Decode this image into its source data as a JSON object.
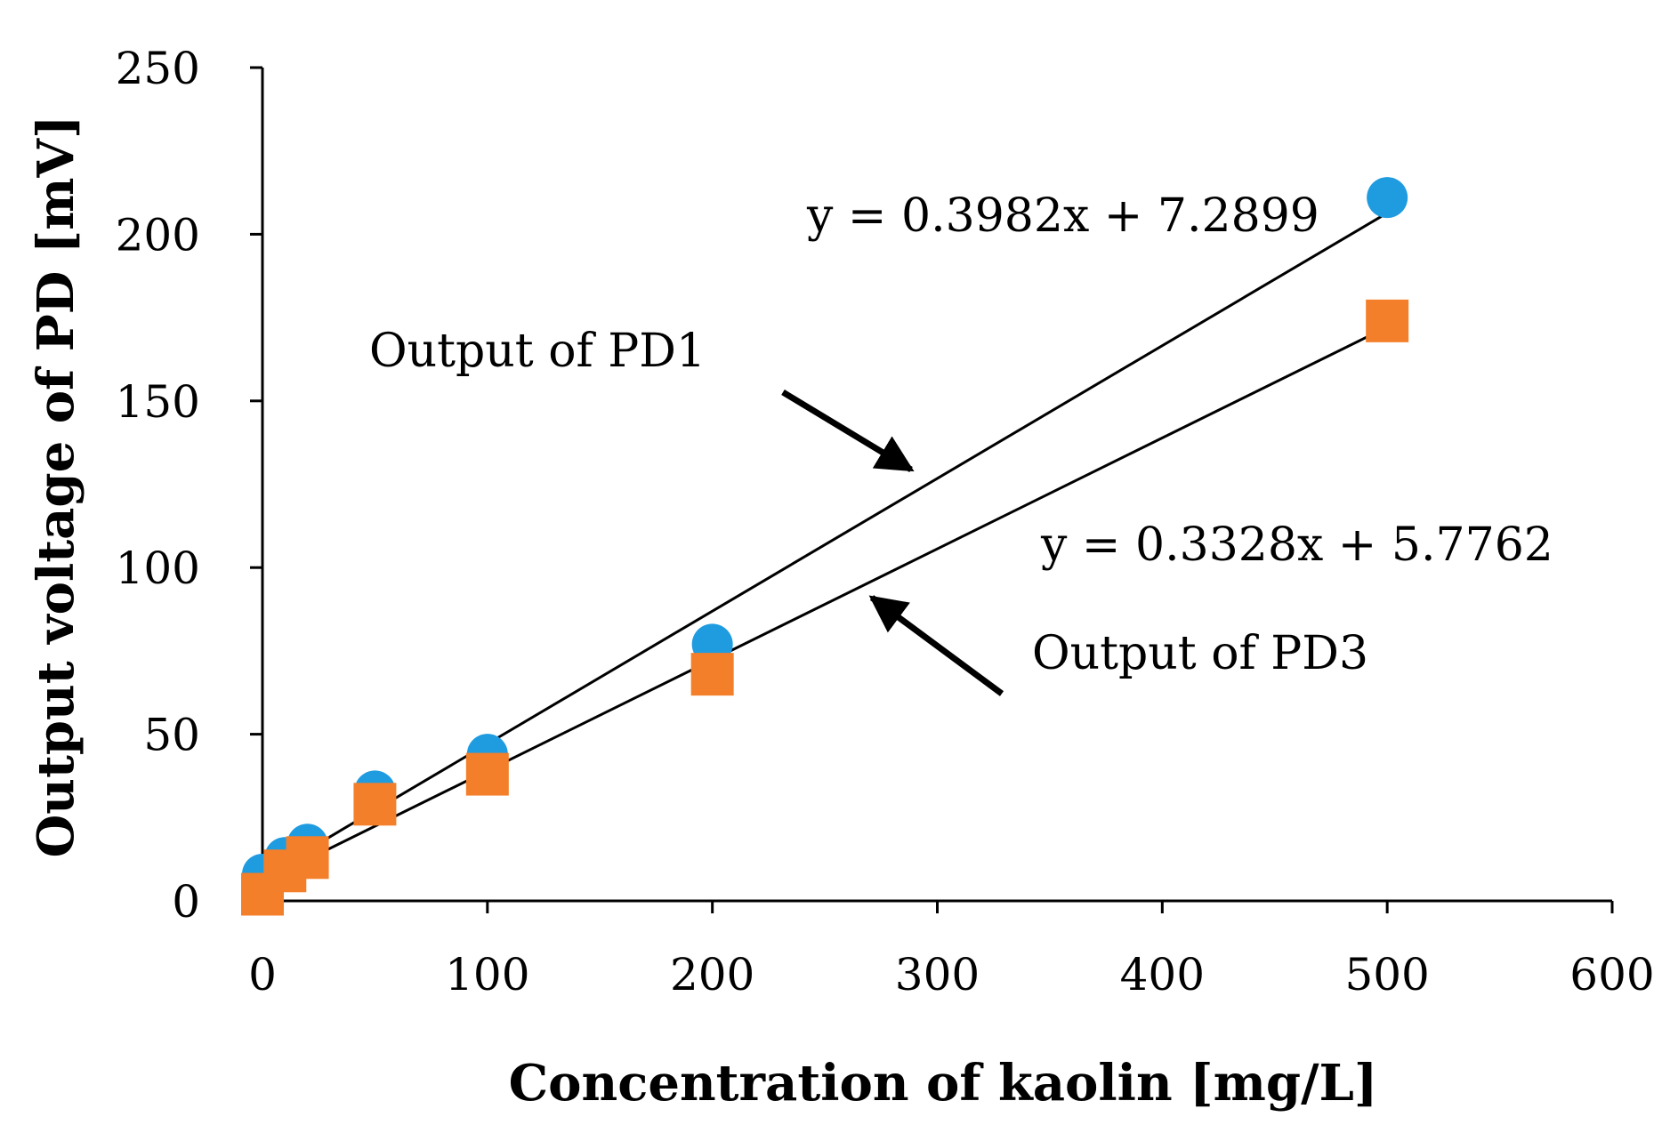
{
  "chart_data": {
    "type": "scatter",
    "xlabel": "Concentration of kaolin [mg/L]",
    "ylabel": "Output voltage of PD [mV]",
    "xlim": [
      0,
      600
    ],
    "ylim": [
      0,
      250
    ],
    "xticks": [
      0,
      100,
      200,
      300,
      400,
      500,
      600
    ],
    "yticks": [
      0,
      50,
      100,
      150,
      200,
      250
    ],
    "grid": false,
    "legend": "none",
    "series": [
      {
        "marker": "circle",
        "color": "#1f9be0",
        "points": [
          [
            0,
            8
          ],
          [
            10,
            13
          ],
          [
            20,
            17
          ],
          [
            50,
            33
          ],
          [
            100,
            44
          ],
          [
            200,
            77
          ],
          [
            500,
            211
          ]
        ],
        "trendline": {
          "slope": 0.3982,
          "intercept": 7.2899
        }
      },
      {
        "marker": "square",
        "color": "#f47f2a",
        "points": [
          [
            0,
            2
          ],
          [
            10,
            9
          ],
          [
            20,
            13
          ],
          [
            50,
            29
          ],
          [
            100,
            38
          ],
          [
            200,
            68
          ],
          [
            500,
            174
          ]
        ],
        "trendline": {
          "slope": 0.3328,
          "intercept": 5.7762
        }
      }
    ],
    "annotations": [
      {
        "text": "y = 0.3982x + 7.2899"
      },
      {
        "text": "y = 0.3328x + 5.7762"
      },
      {
        "text": "Output of PD1"
      },
      {
        "text": "Output of PD3"
      }
    ]
  }
}
